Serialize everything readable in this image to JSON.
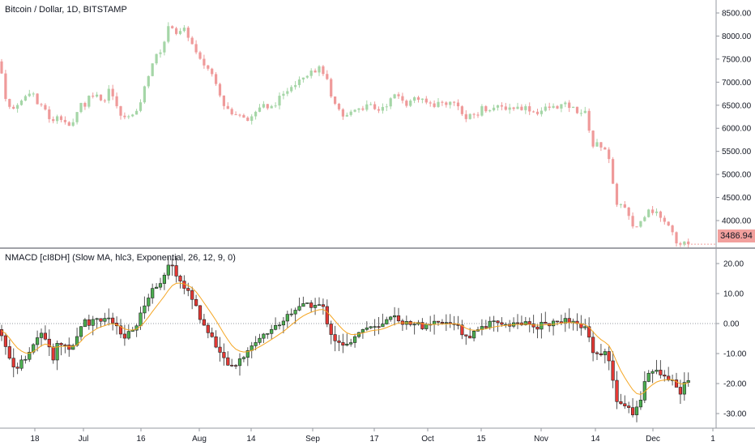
{
  "chart_data": [
    {
      "type": "candlestick",
      "title": "Bitcoin / Dollar, 1D, BITSTAMP",
      "y_ticks": [
        "8500.00",
        "8000.00",
        "7500.00",
        "7000.00",
        "6500.00",
        "6000.00",
        "5500.00",
        "5000.00",
        "4500.00",
        "4000.00"
      ],
      "ylim": [
        3350,
        8800
      ],
      "last_price": "3486.94",
      "colors": {
        "up": "#a5d6a7",
        "down": "#ef9a9a",
        "last_price_bg": "#f2a09d"
      },
      "close_points": [
        [
          0,
          7450
        ],
        [
          5,
          6800
        ],
        [
          10,
          6500
        ],
        [
          15,
          6350
        ],
        [
          20,
          6550
        ],
        [
          25,
          6550
        ],
        [
          30,
          6650
        ],
        [
          35,
          6800
        ],
        [
          40,
          6800
        ],
        [
          45,
          6550
        ],
        [
          50,
          6450
        ],
        [
          55,
          6450
        ],
        [
          60,
          6250
        ],
        [
          65,
          6100
        ],
        [
          70,
          6300
        ],
        [
          75,
          6250
        ],
        [
          80,
          6150
        ],
        [
          85,
          6000
        ],
        [
          90,
          6100
        ],
        [
          95,
          6400
        ],
        [
          100,
          6550
        ],
        [
          105,
          6500
        ],
        [
          110,
          6700
        ],
        [
          115,
          6750
        ],
        [
          120,
          6700
        ],
        [
          125,
          6650
        ],
        [
          130,
          6600
        ],
        [
          135,
          6950
        ],
        [
          140,
          6650
        ],
        [
          145,
          6400
        ],
        [
          150,
          6250
        ],
        [
          155,
          6200
        ],
        [
          160,
          6350
        ],
        [
          165,
          6250
        ],
        [
          170,
          6350
        ],
        [
          175,
          6700
        ],
        [
          180,
          6950
        ],
        [
          185,
          7300
        ],
        [
          190,
          7500
        ],
        [
          195,
          7600
        ],
        [
          200,
          7750
        ],
        [
          205,
          8000
        ],
        [
          210,
          8300
        ],
        [
          215,
          8150
        ],
        [
          220,
          8000
        ],
        [
          225,
          8150
        ],
        [
          230,
          8100
        ],
        [
          235,
          7900
        ],
        [
          240,
          7700
        ],
        [
          245,
          7500
        ],
        [
          250,
          7400
        ],
        [
          255,
          7350
        ],
        [
          260,
          7200
        ],
        [
          265,
          7100
        ],
        [
          270,
          6850
        ],
        [
          275,
          6550
        ],
        [
          280,
          6450
        ],
        [
          285,
          6300
        ],
        [
          290,
          6250
        ],
        [
          295,
          6350
        ],
        [
          300,
          6300
        ],
        [
          305,
          6200
        ],
        [
          310,
          6250
        ],
        [
          315,
          6350
        ],
        [
          320,
          6450
        ],
        [
          325,
          6500
        ],
        [
          330,
          6400
        ],
        [
          335,
          6450
        ],
        [
          340,
          6550
        ],
        [
          345,
          6650
        ],
        [
          350,
          6700
        ],
        [
          355,
          6850
        ],
        [
          360,
          6950
        ],
        [
          365,
          7000
        ],
        [
          370,
          7100
        ],
        [
          375,
          7150
        ],
        [
          380,
          7200
        ],
        [
          385,
          7300
        ],
        [
          390,
          7250
        ],
        [
          395,
          7300
        ],
        [
          400,
          7200
        ],
        [
          405,
          6950
        ],
        [
          410,
          6550
        ],
        [
          415,
          6450
        ],
        [
          420,
          6350
        ],
        [
          425,
          6200
        ],
        [
          430,
          6300
        ],
        [
          435,
          6400
        ],
        [
          440,
          6450
        ],
        [
          445,
          6450
        ],
        [
          450,
          6450
        ],
        [
          455,
          6500
        ],
        [
          460,
          6450
        ],
        [
          465,
          6350
        ],
        [
          470,
          6450
        ],
        [
          475,
          6500
        ],
        [
          480,
          6550
        ],
        [
          485,
          6700
        ],
        [
          490,
          6700
        ],
        [
          495,
          6700
        ],
        [
          500,
          6550
        ],
        [
          505,
          6500
        ],
        [
          510,
          6700
        ],
        [
          515,
          6650
        ],
        [
          520,
          6600
        ],
        [
          525,
          6550
        ],
        [
          530,
          6550
        ],
        [
          535,
          6500
        ],
        [
          540,
          6550
        ],
        [
          545,
          6550
        ],
        [
          550,
          6550
        ],
        [
          555,
          6550
        ],
        [
          560,
          6550
        ],
        [
          565,
          6550
        ],
        [
          570,
          6300
        ],
        [
          575,
          6200
        ],
        [
          580,
          6250
        ],
        [
          585,
          6300
        ],
        [
          590,
          6300
        ],
        [
          595,
          6450
        ],
        [
          600,
          6400
        ],
        [
          605,
          6450
        ],
        [
          610,
          6450
        ],
        [
          615,
          6450
        ],
        [
          620,
          6450
        ],
        [
          625,
          6450
        ],
        [
          630,
          6450
        ],
        [
          635,
          6450
        ],
        [
          640,
          6450
        ],
        [
          645,
          6450
        ],
        [
          650,
          6450
        ],
        [
          655,
          6400
        ],
        [
          660,
          6350
        ],
        [
          665,
          6350
        ],
        [
          670,
          6400
        ],
        [
          675,
          6450
        ],
        [
          680,
          6450
        ],
        [
          685,
          6450
        ],
        [
          690,
          6500
        ],
        [
          695,
          6500
        ],
        [
          700,
          6500
        ],
        [
          705,
          6450
        ],
        [
          710,
          6400
        ],
        [
          715,
          6350
        ],
        [
          720,
          6350
        ],
        [
          725,
          6300
        ],
        [
          730,
          5600
        ],
        [
          735,
          5650
        ],
        [
          740,
          5650
        ],
        [
          745,
          5600
        ],
        [
          750,
          5500
        ],
        [
          755,
          4900
        ],
        [
          760,
          4400
        ],
        [
          765,
          4350
        ],
        [
          770,
          4300
        ],
        [
          775,
          4100
        ],
        [
          780,
          3900
        ],
        [
          785,
          3850
        ],
        [
          790,
          3950
        ],
        [
          795,
          4100
        ],
        [
          800,
          4300
        ],
        [
          805,
          4200
        ],
        [
          810,
          4200
        ],
        [
          815,
          4050
        ],
        [
          820,
          3950
        ],
        [
          825,
          3950
        ],
        [
          830,
          3800
        ],
        [
          835,
          3550
        ],
        [
          840,
          3480
        ],
        [
          845,
          3550
        ],
        [
          850,
          3487
        ]
      ]
    },
    {
      "type": "candlestick",
      "title": "NMACD [cI8DH] (Slow MA, hlc3, Exponential, 26, 12, 9, 0)",
      "y_ticks": [
        "20.00",
        "10.00",
        "0.00",
        "-10.00",
        "-20.00",
        "-30.00"
      ],
      "ylim": [
        -34,
        24
      ],
      "zero_line": 0,
      "colors": {
        "up": "#4caf50",
        "down": "#e53935",
        "signal": "#f5a623"
      },
      "x_ticks": [
        "18",
        "Jul",
        "16",
        "Aug",
        "14",
        "Sep",
        "17",
        "Oct",
        "15",
        "Nov",
        "14",
        "Dec",
        "1"
      ],
      "close_points": [
        [
          0,
          -2
        ],
        [
          5,
          -6
        ],
        [
          10,
          -10
        ],
        [
          15,
          -13
        ],
        [
          20,
          -15
        ],
        [
          25,
          -13
        ],
        [
          30,
          -13
        ],
        [
          35,
          -11
        ],
        [
          40,
          -8
        ],
        [
          45,
          -5
        ],
        [
          50,
          -3
        ],
        [
          55,
          -4
        ],
        [
          60,
          -8
        ],
        [
          65,
          -12
        ],
        [
          70,
          -7
        ],
        [
          75,
          -7
        ],
        [
          80,
          -7
        ],
        [
          85,
          -8
        ],
        [
          90,
          -8
        ],
        [
          95,
          -5
        ],
        [
          100,
          -1
        ],
        [
          105,
          2
        ],
        [
          110,
          0
        ],
        [
          115,
          1
        ],
        [
          120,
          2
        ],
        [
          125,
          1
        ],
        [
          130,
          1
        ],
        [
          135,
          2
        ],
        [
          140,
          0
        ],
        [
          145,
          -2
        ],
        [
          150,
          -4
        ],
        [
          155,
          -5
        ],
        [
          160,
          -3
        ],
        [
          165,
          -2
        ],
        [
          170,
          0
        ],
        [
          175,
          4
        ],
        [
          180,
          7
        ],
        [
          185,
          10
        ],
        [
          190,
          12
        ],
        [
          195,
          13
        ],
        [
          200,
          15
        ],
        [
          205,
          17
        ],
        [
          210,
          20
        ],
        [
          215,
          18
        ],
        [
          220,
          15
        ],
        [
          225,
          13
        ],
        [
          230,
          11
        ],
        [
          235,
          10
        ],
        [
          240,
          7
        ],
        [
          245,
          3
        ],
        [
          250,
          0
        ],
        [
          255,
          -2
        ],
        [
          260,
          -4
        ],
        [
          265,
          -6
        ],
        [
          270,
          -9
        ],
        [
          275,
          -12
        ],
        [
          280,
          -13
        ],
        [
          285,
          -15
        ],
        [
          290,
          -14
        ],
        [
          295,
          -12
        ],
        [
          300,
          -11
        ],
        [
          305,
          -9
        ],
        [
          310,
          -8
        ],
        [
          315,
          -6
        ],
        [
          320,
          -5
        ],
        [
          325,
          -4
        ],
        [
          330,
          -3
        ],
        [
          335,
          -2
        ],
        [
          340,
          -1
        ],
        [
          345,
          0
        ],
        [
          350,
          1
        ],
        [
          355,
          3
        ],
        [
          360,
          4
        ],
        [
          365,
          5
        ],
        [
          370,
          6
        ],
        [
          375,
          6
        ],
        [
          380,
          6
        ],
        [
          385,
          6
        ],
        [
          390,
          6
        ],
        [
          395,
          6
        ],
        [
          400,
          5
        ],
        [
          405,
          -1
        ],
        [
          410,
          -4
        ],
        [
          415,
          -6
        ],
        [
          420,
          -7
        ],
        [
          425,
          -8
        ],
        [
          430,
          -7
        ],
        [
          435,
          -5
        ],
        [
          440,
          -3
        ],
        [
          445,
          -2
        ],
        [
          450,
          -2
        ],
        [
          455,
          -1
        ],
        [
          460,
          -1
        ],
        [
          465,
          -2
        ],
        [
          470,
          -1
        ],
        [
          475,
          0
        ],
        [
          480,
          1
        ],
        [
          485,
          2
        ],
        [
          490,
          2
        ],
        [
          495,
          1
        ],
        [
          500,
          0
        ],
        [
          505,
          0
        ],
        [
          510,
          1
        ],
        [
          515,
          0
        ],
        [
          520,
          -1
        ],
        [
          525,
          -1
        ],
        [
          530,
          -1
        ],
        [
          535,
          0
        ],
        [
          540,
          0
        ],
        [
          545,
          0
        ],
        [
          550,
          0
        ],
        [
          555,
          0
        ],
        [
          560,
          0
        ],
        [
          565,
          0
        ],
        [
          570,
          -3
        ],
        [
          575,
          -5
        ],
        [
          580,
          -4
        ],
        [
          585,
          -3
        ],
        [
          590,
          -2
        ],
        [
          595,
          -1
        ],
        [
          600,
          -1
        ],
        [
          605,
          0
        ],
        [
          610,
          0
        ],
        [
          615,
          0
        ],
        [
          620,
          0
        ],
        [
          625,
          0
        ],
        [
          630,
          0
        ],
        [
          635,
          0
        ],
        [
          640,
          0
        ],
        [
          645,
          0
        ],
        [
          650,
          0
        ],
        [
          655,
          -1
        ],
        [
          660,
          -1
        ],
        [
          665,
          -1
        ],
        [
          670,
          0
        ],
        [
          675,
          0
        ],
        [
          680,
          0
        ],
        [
          685,
          0
        ],
        [
          690,
          1
        ],
        [
          695,
          1
        ],
        [
          700,
          1
        ],
        [
          705,
          0
        ],
        [
          710,
          0
        ],
        [
          715,
          -1
        ],
        [
          720,
          -1
        ],
        [
          725,
          -2
        ],
        [
          730,
          -8
        ],
        [
          735,
          -10
        ],
        [
          740,
          -10
        ],
        [
          745,
          -10
        ],
        [
          750,
          -9
        ],
        [
          755,
          -17
        ],
        [
          760,
          -25
        ],
        [
          765,
          -27
        ],
        [
          770,
          -27
        ],
        [
          775,
          -28
        ],
        [
          780,
          -30
        ],
        [
          785,
          -29
        ],
        [
          790,
          -26
        ],
        [
          795,
          -20
        ],
        [
          800,
          -16
        ],
        [
          805,
          -16
        ],
        [
          810,
          -16
        ],
        [
          815,
          -17
        ],
        [
          820,
          -18
        ],
        [
          825,
          -18
        ],
        [
          830,
          -19
        ],
        [
          835,
          -22
        ],
        [
          840,
          -23
        ],
        [
          845,
          -20
        ],
        [
          850,
          -18
        ]
      ]
    }
  ]
}
